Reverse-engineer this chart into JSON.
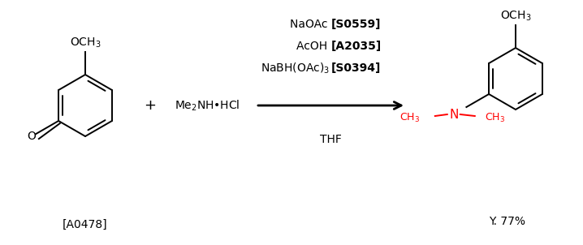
{
  "background_color": "#ffffff",
  "figure_width": 7.18,
  "figure_height": 3.02,
  "dpi": 100,
  "reagent1_label": "[A0478]",
  "reagent2_formula": "Me$_2$NH•HCl",
  "conditions": [
    {
      "normal": "NaOAc ",
      "bold": "[S0559]"
    },
    {
      "normal": "AcOH ",
      "bold": "[A2035]"
    },
    {
      "normal": "NaBH(OAc)$_3$ ",
      "bold": "[S0394]"
    }
  ],
  "conditions_below": "THF",
  "yield_label": "Y. 77%",
  "plus_sign": "+",
  "arrow_color": "#000000",
  "text_color": "#000000",
  "red_color": "#ff0000",
  "fs": 10,
  "fs_small": 9,
  "lw": 1.4
}
